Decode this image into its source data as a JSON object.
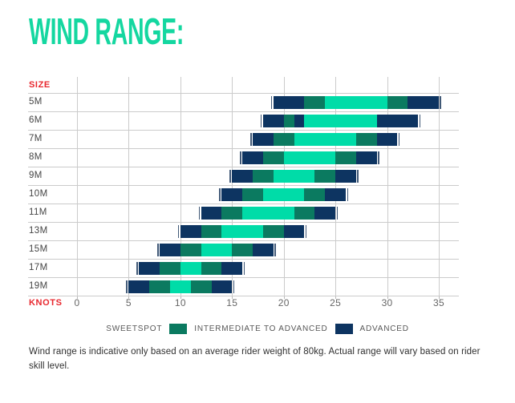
{
  "title": "WIND RANGE:",
  "axis": {
    "size_label": "SIZE",
    "knots_label": "KNOTS",
    "ticks": [
      0,
      5,
      10,
      15,
      20,
      25,
      30,
      35
    ],
    "min": 0,
    "max": 35
  },
  "colors": {
    "sweetspot": "#00DCA8",
    "intermediate": "#0B7A60",
    "advanced": "#0D3461",
    "title": "#14D7A0",
    "axis_red": "#E8272E",
    "grid": "#CBCBCB"
  },
  "chart_data": {
    "type": "bar",
    "orientation": "horizontal-stacked",
    "title": "WIND RANGE:",
    "xlabel": "KNOTS",
    "ylabel": "SIZE",
    "xlim": [
      0,
      35
    ],
    "grid": true,
    "legend_position": "bottom",
    "categories": [
      "5M",
      "6M",
      "7M",
      "8M",
      "9M",
      "10M",
      "11M",
      "13M",
      "15M",
      "17M",
      "19M"
    ],
    "bands": [
      "sweetspot",
      "intermediate",
      "advanced"
    ],
    "rows": [
      {
        "size": "5M",
        "segments": [
          {
            "band": "advanced",
            "from": 19,
            "to": 22
          },
          {
            "band": "intermediate",
            "from": 22,
            "to": 24
          },
          {
            "band": "sweetspot",
            "from": 24,
            "to": 30
          },
          {
            "band": "intermediate",
            "from": 30,
            "to": 32
          },
          {
            "band": "advanced",
            "from": 32,
            "to": 35
          }
        ]
      },
      {
        "size": "6M",
        "segments": [
          {
            "band": "advanced",
            "from": 18,
            "to": 20
          },
          {
            "band": "intermediate",
            "from": 20,
            "to": 21
          },
          {
            "band": "advanced",
            "from": 21,
            "to": 22
          },
          {
            "band": "sweetspot",
            "from": 22,
            "to": 29
          },
          {
            "band": "advanced",
            "from": 29,
            "to": 33
          }
        ]
      },
      {
        "size": "7M",
        "segments": [
          {
            "band": "advanced",
            "from": 17,
            "to": 19
          },
          {
            "band": "intermediate",
            "from": 19,
            "to": 21
          },
          {
            "band": "sweetspot",
            "from": 21,
            "to": 27
          },
          {
            "band": "intermediate",
            "from": 27,
            "to": 29
          },
          {
            "band": "advanced",
            "from": 29,
            "to": 31
          }
        ]
      },
      {
        "size": "8M",
        "segments": [
          {
            "band": "advanced",
            "from": 16,
            "to": 18
          },
          {
            "band": "intermediate",
            "from": 18,
            "to": 20
          },
          {
            "band": "sweetspot",
            "from": 20,
            "to": 25
          },
          {
            "band": "intermediate",
            "from": 25,
            "to": 27
          },
          {
            "band": "advanced",
            "from": 27,
            "to": 29
          }
        ]
      },
      {
        "size": "9M",
        "segments": [
          {
            "band": "advanced",
            "from": 15,
            "to": 17
          },
          {
            "band": "intermediate",
            "from": 17,
            "to": 19
          },
          {
            "band": "sweetspot",
            "from": 19,
            "to": 23
          },
          {
            "band": "intermediate",
            "from": 23,
            "to": 25
          },
          {
            "band": "advanced",
            "from": 25,
            "to": 27
          }
        ]
      },
      {
        "size": "10M",
        "segments": [
          {
            "band": "advanced",
            "from": 14,
            "to": 16
          },
          {
            "band": "intermediate",
            "from": 16,
            "to": 18
          },
          {
            "band": "sweetspot",
            "from": 18,
            "to": 22
          },
          {
            "band": "intermediate",
            "from": 22,
            "to": 24
          },
          {
            "band": "advanced",
            "from": 24,
            "to": 26
          }
        ]
      },
      {
        "size": "11M",
        "segments": [
          {
            "band": "advanced",
            "from": 12,
            "to": 14
          },
          {
            "band": "intermediate",
            "from": 14,
            "to": 16
          },
          {
            "band": "sweetspot",
            "from": 16,
            "to": 21
          },
          {
            "band": "intermediate",
            "from": 21,
            "to": 23
          },
          {
            "band": "advanced",
            "from": 23,
            "to": 25
          }
        ]
      },
      {
        "size": "13M",
        "segments": [
          {
            "band": "advanced",
            "from": 10,
            "to": 12
          },
          {
            "band": "intermediate",
            "from": 12,
            "to": 14
          },
          {
            "band": "sweetspot",
            "from": 14,
            "to": 18
          },
          {
            "band": "intermediate",
            "from": 18,
            "to": 20
          },
          {
            "band": "advanced",
            "from": 20,
            "to": 22
          }
        ]
      },
      {
        "size": "15M",
        "segments": [
          {
            "band": "advanced",
            "from": 8,
            "to": 10
          },
          {
            "band": "intermediate",
            "from": 10,
            "to": 12
          },
          {
            "band": "sweetspot",
            "from": 12,
            "to": 15
          },
          {
            "band": "intermediate",
            "from": 15,
            "to": 17
          },
          {
            "band": "advanced",
            "from": 17,
            "to": 19
          }
        ]
      },
      {
        "size": "17M",
        "segments": [
          {
            "band": "advanced",
            "from": 6,
            "to": 8
          },
          {
            "band": "intermediate",
            "from": 8,
            "to": 10
          },
          {
            "band": "sweetspot",
            "from": 10,
            "to": 12
          },
          {
            "band": "intermediate",
            "from": 12,
            "to": 14
          },
          {
            "band": "advanced",
            "from": 14,
            "to": 16
          }
        ]
      },
      {
        "size": "19M",
        "segments": [
          {
            "band": "advanced",
            "from": 5,
            "to": 7
          },
          {
            "band": "intermediate",
            "from": 7,
            "to": 9
          },
          {
            "band": "sweetspot",
            "from": 9,
            "to": 11
          },
          {
            "band": "intermediate",
            "from": 11,
            "to": 13
          },
          {
            "band": "advanced",
            "from": 13,
            "to": 15
          }
        ]
      }
    ]
  },
  "legend": {
    "sequence": [
      {
        "type": "label",
        "text": "SWEETSPOT"
      },
      {
        "type": "swatch",
        "band": "intermediate",
        "color": "#0B7A60"
      },
      {
        "type": "label",
        "text": "INTERMEDIATE TO ADVANCED"
      },
      {
        "type": "swatch",
        "band": "advanced",
        "color": "#0D3461"
      },
      {
        "type": "label",
        "text": "ADVANCED"
      }
    ]
  },
  "footer": "Wind range is indicative only based on an average rider weight of 80kg. Actual range will vary based on rider skill level."
}
